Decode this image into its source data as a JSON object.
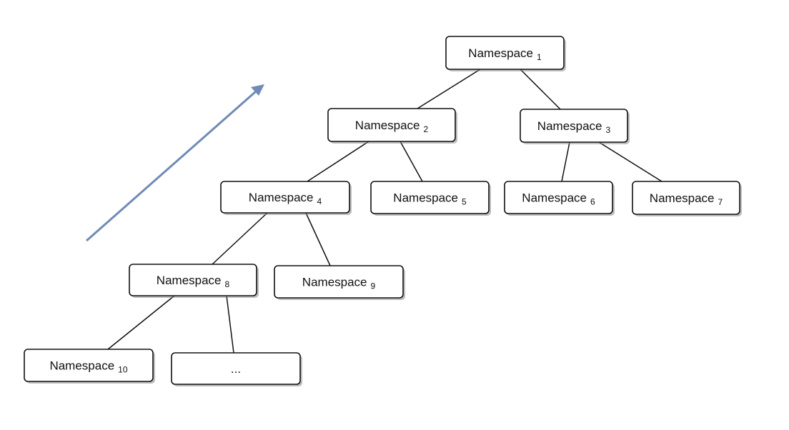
{
  "diagram": {
    "type": "tree",
    "nodes": [
      {
        "id": "n1",
        "label": "Namespace",
        "sub": "1"
      },
      {
        "id": "n2",
        "label": "Namespace",
        "sub": "2"
      },
      {
        "id": "n3",
        "label": "Namespace",
        "sub": "3"
      },
      {
        "id": "n4",
        "label": "Namespace",
        "sub": "4"
      },
      {
        "id": "n5",
        "label": "Namespace",
        "sub": "5"
      },
      {
        "id": "n6",
        "label": "Namespace",
        "sub": "6"
      },
      {
        "id": "n7",
        "label": "Namespace",
        "sub": "7"
      },
      {
        "id": "n8",
        "label": "Namespace",
        "sub": "8"
      },
      {
        "id": "n9",
        "label": "Namespace",
        "sub": "9"
      },
      {
        "id": "n10",
        "label": "Namespace",
        "sub": "10"
      },
      {
        "id": "n11",
        "label": "...",
        "sub": ""
      }
    ],
    "edges": [
      [
        "n1",
        "n2"
      ],
      [
        "n1",
        "n3"
      ],
      [
        "n2",
        "n4"
      ],
      [
        "n2",
        "n5"
      ],
      [
        "n3",
        "n6"
      ],
      [
        "n3",
        "n7"
      ],
      [
        "n4",
        "n8"
      ],
      [
        "n4",
        "n9"
      ],
      [
        "n8",
        "n10"
      ],
      [
        "n8",
        "n11"
      ]
    ],
    "arrow_color": "#6f8bb6"
  }
}
